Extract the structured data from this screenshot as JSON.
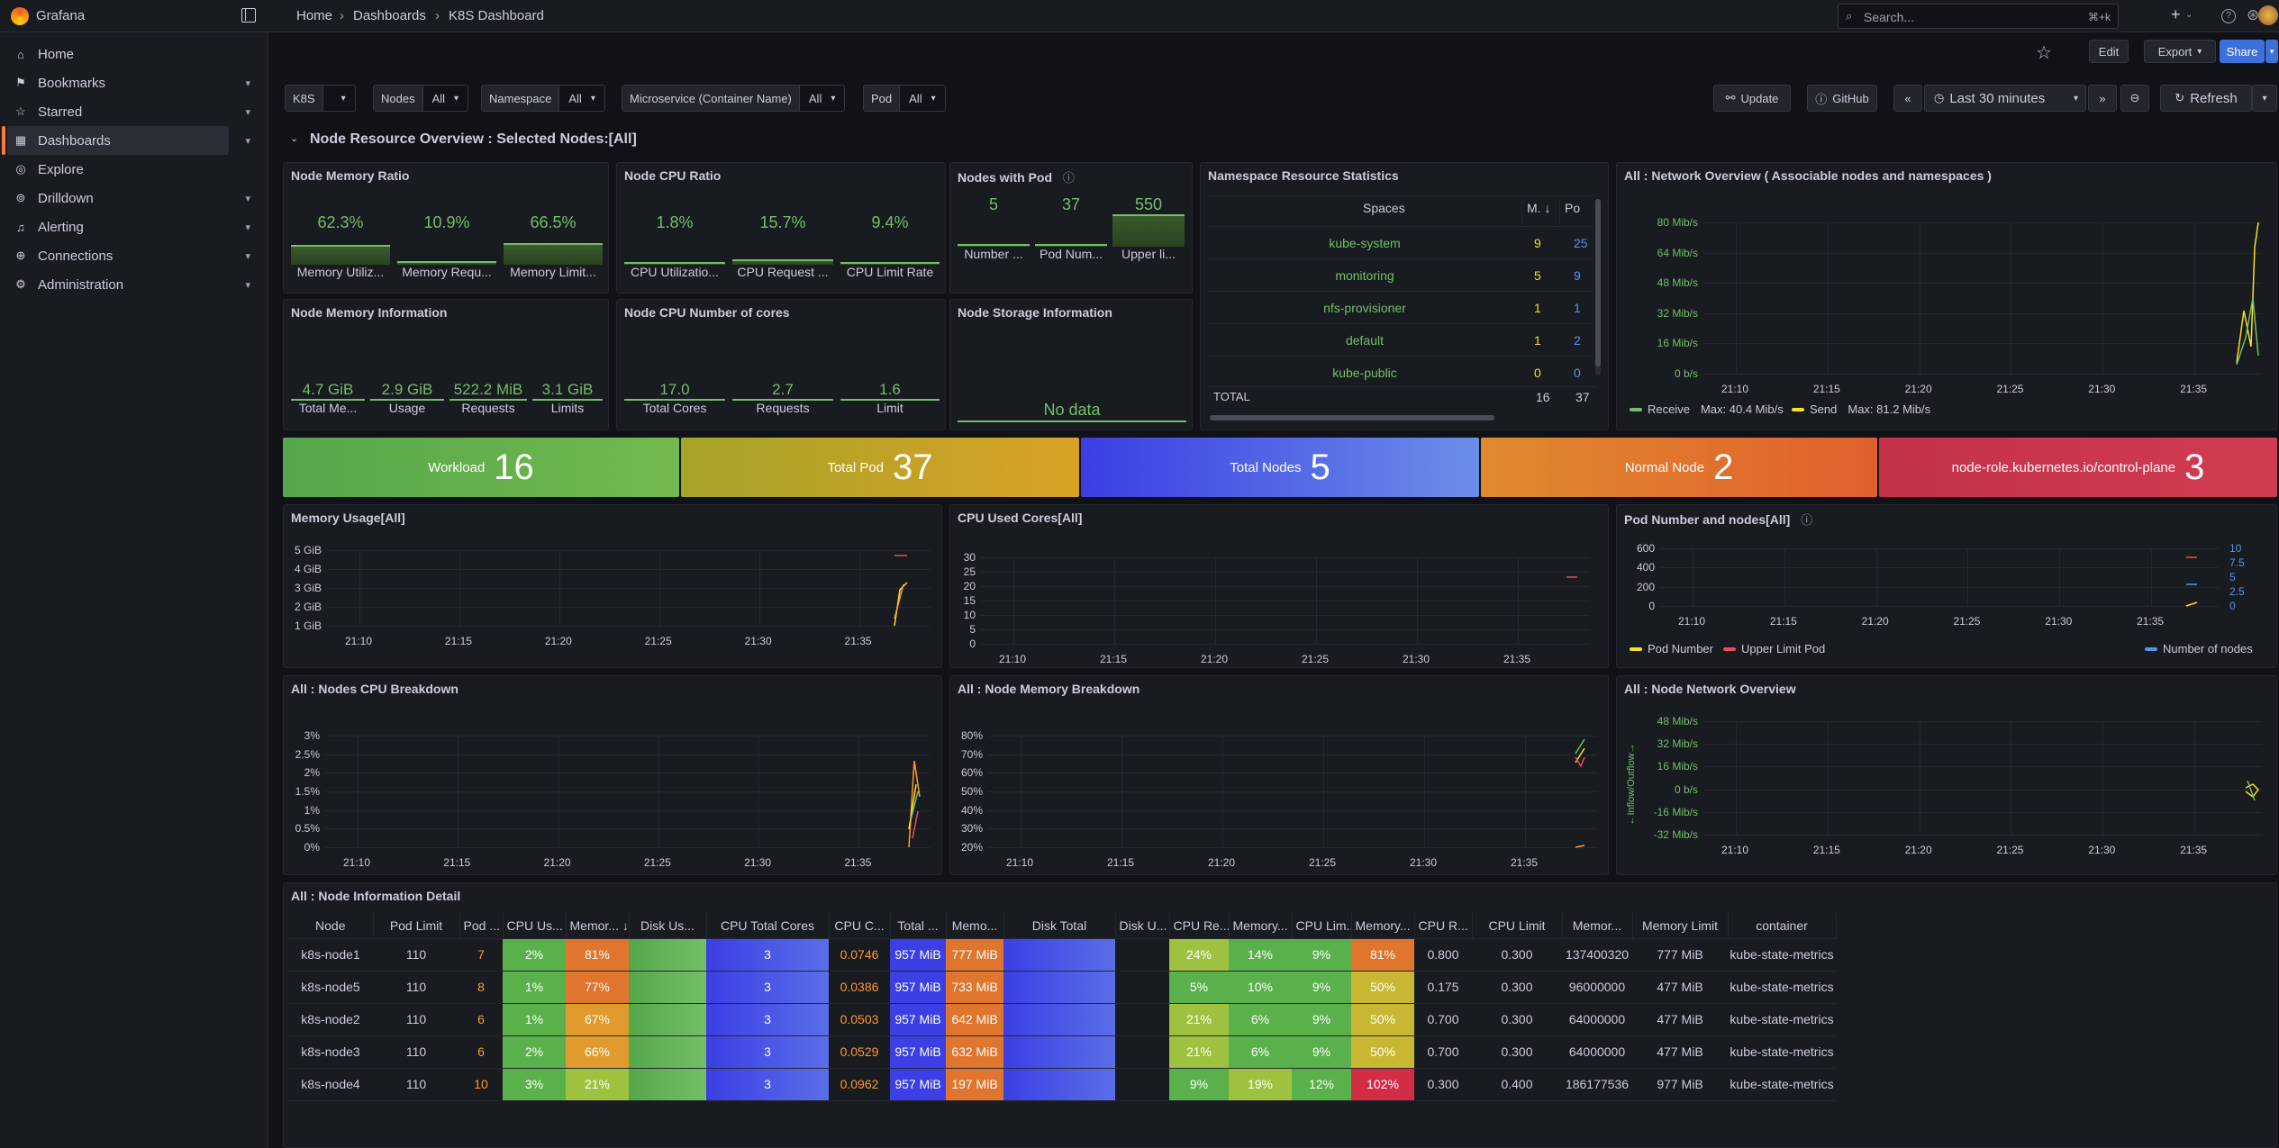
{
  "app": {
    "logo_text": "Grafana"
  },
  "breadcrumb": [
    "Home",
    "Dashboards",
    "K8S Dashboard"
  ],
  "search": {
    "placeholder": "Search...",
    "shortcut": "⌘+k"
  },
  "sidebar": {
    "items": [
      {
        "label": "Home",
        "icon": "home-icon",
        "chevron": false
      },
      {
        "label": "Bookmarks",
        "icon": "bookmark-icon",
        "chevron": true
      },
      {
        "label": "Starred",
        "icon": "star-icon",
        "chevron": true
      },
      {
        "label": "Dashboards",
        "icon": "dashboards-icon",
        "chevron": true,
        "active": true
      },
      {
        "label": "Explore",
        "icon": "explore-icon",
        "chevron": false
      },
      {
        "label": "Drilldown",
        "icon": "drilldown-icon",
        "chevron": true
      },
      {
        "label": "Alerting",
        "icon": "bell-icon",
        "chevron": true
      },
      {
        "label": "Connections",
        "icon": "connections-icon",
        "chevron": true
      },
      {
        "label": "Administration",
        "icon": "gear-icon",
        "chevron": true
      }
    ]
  },
  "toolbar": {
    "edit": "Edit",
    "export": "Export",
    "share": "Share",
    "update": "Update",
    "github": "GitHub",
    "time_range": "Last 30 minutes",
    "refresh": "Refresh"
  },
  "variables": [
    {
      "label": "K8S",
      "value": ""
    },
    {
      "label": "Nodes",
      "value": "All"
    },
    {
      "label": "Namespace",
      "value": "All"
    },
    {
      "label": "Microservice (Container Name)",
      "value": "All"
    },
    {
      "label": "Pod",
      "value": "All"
    }
  ],
  "row_title": "Node Resource Overview : Selected Nodes:[All]",
  "panels": {
    "mem_ratio": {
      "title": "Node Memory Ratio",
      "items": [
        {
          "value": "62.3%",
          "label": "Memory Utiliz...",
          "level": 0.623
        },
        {
          "value": "10.9%",
          "label": "Memory Requ...",
          "level": 0.109
        },
        {
          "value": "66.5%",
          "label": "Memory Limit...",
          "level": 0.665
        }
      ]
    },
    "cpu_ratio": {
      "title": "Node CPU Ratio",
      "items": [
        {
          "value": "1.8%",
          "label": "CPU Utilizatio...",
          "level": 0.018
        },
        {
          "value": "15.7%",
          "label": "CPU Request ...",
          "level": 0.157
        },
        {
          "value": "9.4%",
          "label": "CPU Limit Rate",
          "level": 0.094
        }
      ]
    },
    "nodes_pod": {
      "title": "Nodes with Pod",
      "items": [
        {
          "value": "5",
          "label": "Number ...",
          "level": 0.009
        },
        {
          "value": "37",
          "label": "Pod Num...",
          "level": 0.067
        },
        {
          "value": "550",
          "label": "Upper li...",
          "level": 1.0
        }
      ]
    },
    "mem_info": {
      "title": "Node Memory Information",
      "items": [
        {
          "value": "4.7 GiB",
          "label": "Total Me..."
        },
        {
          "value": "2.9 GiB",
          "label": "Usage"
        },
        {
          "value": "522.2 MiB",
          "label": "Requests"
        },
        {
          "value": "3.1 GiB",
          "label": "Limits"
        }
      ]
    },
    "cpu_cores": {
      "title": "Node CPU Number of cores",
      "items": [
        {
          "value": "17.0",
          "label": "Total Cores"
        },
        {
          "value": "2.7",
          "label": "Requests"
        },
        {
          "value": "1.6",
          "label": "Limit"
        }
      ]
    },
    "storage": {
      "title": "Node Storage Information",
      "nodata": "No data"
    },
    "ns_stats": {
      "title": "Namespace Resource Statistics",
      "headers": [
        "Spaces",
        "M.",
        "Po"
      ],
      "rows": [
        {
          "name": "kube-system",
          "m": "9",
          "p": "25"
        },
        {
          "name": "monitoring",
          "m": "5",
          "p": "9"
        },
        {
          "name": "nfs-provisioner",
          "m": "1",
          "p": "1"
        },
        {
          "name": "default",
          "m": "1",
          "p": "2"
        },
        {
          "name": "kube-public",
          "m": "0",
          "p": "0"
        }
      ],
      "total": {
        "label": "TOTAL",
        "m": "16",
        "p": "37"
      }
    },
    "net_overview": {
      "title": "All : Network Overview ( Associable nodes and namespaces )",
      "legend": [
        {
          "name": "Receive",
          "stat": "Max: 40.4 Mib/s",
          "color": "#73bf69"
        },
        {
          "name": "Send",
          "stat": "Max: 81.2 Mib/s",
          "color": "#fade2a"
        }
      ]
    },
    "mem_usage": {
      "title": "Memory Usage[All]"
    },
    "cpu_used": {
      "title": "CPU Used Cores[All]"
    },
    "pod_nodes": {
      "title": "Pod Number and nodes[All]",
      "legend": [
        {
          "name": "Pod Number",
          "color": "#fade2a"
        },
        {
          "name": "Upper Limit Pod",
          "color": "#f2495c"
        },
        {
          "name": "Number of nodes",
          "color": "#5794f2"
        }
      ]
    },
    "cpu_breakdown": {
      "title": "All : Nodes CPU Breakdown"
    },
    "mem_breakdown": {
      "title": "All : Node Memory Breakdown"
    },
    "net_node": {
      "title": "All : Node Network Overview",
      "ylabel": "←Inflow/Outflow→"
    },
    "detail": {
      "title": "All : Node Information Detail"
    }
  },
  "banners": [
    {
      "label": "Workload",
      "value": "16",
      "color": "#56a64b"
    },
    {
      "label": "Total Pod",
      "value": "37",
      "color": "#c5a11b"
    },
    {
      "label": "Total Nodes",
      "value": "5",
      "color": "#4a5ae8"
    },
    {
      "label": "Normal Node",
      "value": "2",
      "color": "#e0752d"
    },
    {
      "label": "node-role.kubernetes.io/control-plane",
      "value": "3",
      "color": "#c4314b"
    }
  ],
  "charts": {
    "net_overview": {
      "yticks": [
        "80 Mib/s",
        "64 Mib/s",
        "48 Mib/s",
        "32 Mib/s",
        "16 Mib/s",
        "0 b/s"
      ],
      "xticks": [
        "21:10",
        "21:15",
        "21:20",
        "21:25",
        "21:30",
        "21:35"
      ]
    },
    "mem_usage": {
      "yticks": [
        "5 GiB",
        "4 GiB",
        "3 GiB",
        "2 GiB",
        "1 GiB"
      ],
      "xticks": [
        "21:10",
        "21:15",
        "21:20",
        "21:25",
        "21:30",
        "21:35"
      ]
    },
    "cpu_used": {
      "yticks": [
        "30",
        "25",
        "20",
        "15",
        "10",
        "5",
        "0"
      ],
      "xticks": [
        "21:10",
        "21:15",
        "21:20",
        "21:25",
        "21:30",
        "21:35"
      ]
    },
    "pod_nodes": {
      "yticks": [
        "600",
        "400",
        "200",
        "0"
      ],
      "y2ticks": [
        "10",
        "7.5",
        "5",
        "2.5",
        "0"
      ],
      "xticks": [
        "21:10",
        "21:15",
        "21:20",
        "21:25",
        "21:30",
        "21:35"
      ]
    },
    "cpu_breakdown": {
      "yticks": [
        "3%",
        "2.5%",
        "2%",
        "1.5%",
        "1%",
        "0.5%",
        "0%"
      ],
      "xticks": [
        "21:10",
        "21:15",
        "21:20",
        "21:25",
        "21:30",
        "21:35"
      ]
    },
    "mem_breakdown": {
      "yticks": [
        "80%",
        "70%",
        "60%",
        "50%",
        "40%",
        "30%",
        "20%"
      ],
      "xticks": [
        "21:10",
        "21:15",
        "21:20",
        "21:25",
        "21:30",
        "21:35"
      ]
    },
    "net_node": {
      "yticks": [
        "48 Mib/s",
        "32 Mib/s",
        "16 Mib/s",
        "0 b/s",
        "-16 Mib/s",
        "-32 Mib/s"
      ],
      "xticks": [
        "21:10",
        "21:15",
        "21:20",
        "21:25",
        "21:30",
        "21:35"
      ]
    }
  },
  "table": {
    "headers": [
      "Node",
      "Pod Limit",
      "Pod ...",
      "CPU Us...",
      "Memor...",
      "Disk Us...",
      "CPU Total Cores",
      "CPU C...",
      "Total ...",
      "Memo...",
      "Disk Total",
      "Disk U...",
      "CPU Re...",
      "Memory...",
      "CPU Lim...",
      "Memory...",
      "CPU R...",
      "CPU Limit",
      "Memor...",
      "Memory Limit",
      "container"
    ],
    "rows": [
      [
        "k8s-node1",
        "110",
        "7",
        "2%",
        "81%",
        "",
        "3",
        "0.0746",
        "957 MiB",
        "777 MiB",
        "",
        "",
        "24%",
        "14%",
        "9%",
        "81%",
        "0.800",
        "0.300",
        "137400320",
        "777 MiB",
        "kube-state-metrics"
      ],
      [
        "k8s-node5",
        "110",
        "8",
        "1%",
        "77%",
        "",
        "3",
        "0.0386",
        "957 MiB",
        "733 MiB",
        "",
        "",
        "5%",
        "10%",
        "9%",
        "50%",
        "0.175",
        "0.300",
        "96000000",
        "477 MiB",
        "kube-state-metrics"
      ],
      [
        "k8s-node2",
        "110",
        "6",
        "1%",
        "67%",
        "",
        "3",
        "0.0503",
        "957 MiB",
        "642 MiB",
        "",
        "",
        "21%",
        "6%",
        "9%",
        "50%",
        "0.700",
        "0.300",
        "64000000",
        "477 MiB",
        "kube-state-metrics"
      ],
      [
        "k8s-node3",
        "110",
        "6",
        "2%",
        "66%",
        "",
        "3",
        "0.0529",
        "957 MiB",
        "632 MiB",
        "",
        "",
        "21%",
        "6%",
        "9%",
        "50%",
        "0.700",
        "0.300",
        "64000000",
        "477 MiB",
        "kube-state-metrics"
      ],
      [
        "k8s-node4",
        "110",
        "10",
        "3%",
        "21%",
        "",
        "3",
        "0.0962",
        "957 MiB",
        "197 MiB",
        "",
        "",
        "9%",
        "19%",
        "12%",
        "102%",
        "0.300",
        "0.400",
        "186177536",
        "977 MiB",
        "kube-state-metrics"
      ]
    ]
  }
}
